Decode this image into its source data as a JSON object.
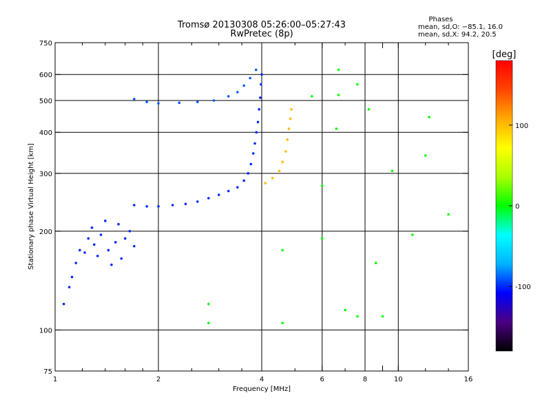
{
  "chart_data": {
    "type": "scatter",
    "title": "Tromsø 20130308 05:26:00–05:27:43",
    "subtitle": "RwPretec (8p)",
    "xlabel": "Frequency [MHz]",
    "ylabel": "Stationary phase Virtual Height [km]",
    "x_scale": "log",
    "y_scale": "log",
    "xlim": [
      1,
      16
    ],
    "ylim": [
      75,
      750
    ],
    "x_ticks": [
      1,
      2,
      4,
      6,
      8,
      9,
      10,
      16
    ],
    "x_tick_labels": [
      "1",
      "2",
      "4",
      "6",
      "8",
      "",
      "10",
      "16"
    ],
    "x_grid_lines": [
      2,
      4,
      6,
      8,
      10
    ],
    "x_minor_ticks": [
      1.2,
      1.4,
      1.6,
      1.8,
      2.5,
      3,
      3.5,
      5,
      7,
      9,
      12,
      14
    ],
    "y_ticks": [
      75,
      100,
      200,
      300,
      400,
      500,
      600,
      750
    ],
    "y_tick_labels": [
      "75",
      "100",
      "200",
      "300",
      "400",
      "500",
      "600",
      "750"
    ],
    "y_grid_lines": [
      100,
      200,
      300,
      400,
      500,
      600
    ],
    "grid": true,
    "phase_box": {
      "title": "Phases",
      "line1": "mean, sd,O: −85.1, 16.0",
      "line2": "mean, sd,X:  94.2, 20.5"
    },
    "colorbar": {
      "label": "[deg]",
      "range": [
        -180,
        180
      ],
      "ticks": [
        100,
        0,
        -100
      ],
      "tick_labels": [
        "100",
        "0",
        "-100"
      ],
      "colors": [
        "#000000",
        "#4b0082",
        "#0000ff",
        "#00b4ff",
        "#00ffff",
        "#00ff00",
        "#aaff00",
        "#ffff00",
        "#ffaa00",
        "#ff4400",
        "#ff0000"
      ]
    },
    "series": [
      {
        "trace": "O-mode low layer",
        "phase": -100,
        "points": [
          [
            1.22,
            172
          ],
          [
            1.25,
            190
          ],
          [
            1.28,
            205
          ],
          [
            1.3,
            182
          ],
          [
            1.33,
            168
          ],
          [
            1.36,
            195
          ],
          [
            1.4,
            215
          ],
          [
            1.43,
            175
          ],
          [
            1.46,
            158
          ],
          [
            1.5,
            185
          ],
          [
            1.53,
            210
          ],
          [
            1.56,
            165
          ],
          [
            1.6,
            190
          ],
          [
            1.65,
            200
          ],
          [
            1.7,
            180
          ],
          [
            1.12,
            145
          ],
          [
            1.15,
            160
          ],
          [
            1.18,
            175
          ],
          [
            1.06,
            120
          ],
          [
            1.1,
            135
          ]
        ]
      },
      {
        "trace": "O-mode F trace",
        "phase": -100,
        "points": [
          [
            1.7,
            240
          ],
          [
            1.85,
            238
          ],
          [
            2.0,
            238
          ],
          [
            2.2,
            240
          ],
          [
            2.4,
            242
          ],
          [
            2.6,
            246
          ],
          [
            2.8,
            252
          ],
          [
            3.0,
            258
          ],
          [
            3.2,
            265
          ],
          [
            3.4,
            272
          ],
          [
            3.55,
            285
          ],
          [
            3.65,
            300
          ],
          [
            3.72,
            320
          ],
          [
            3.78,
            345
          ],
          [
            3.82,
            370
          ],
          [
            3.86,
            400
          ],
          [
            3.9,
            430
          ],
          [
            3.93,
            470
          ],
          [
            3.96,
            510
          ],
          [
            3.98,
            560
          ],
          [
            4.0,
            600
          ]
        ]
      },
      {
        "trace": "O-mode multiple echo",
        "phase": -90,
        "points": [
          [
            1.7,
            505
          ],
          [
            1.85,
            495
          ],
          [
            2.0,
            490
          ],
          [
            2.3,
            492
          ],
          [
            2.6,
            495
          ],
          [
            2.9,
            500
          ],
          [
            3.2,
            515
          ],
          [
            3.4,
            530
          ],
          [
            3.55,
            555
          ],
          [
            3.7,
            585
          ],
          [
            3.85,
            620
          ]
        ]
      },
      {
        "trace": "X-mode trace",
        "phase": 100,
        "points": [
          [
            4.1,
            280
          ],
          [
            4.3,
            290
          ],
          [
            4.5,
            305
          ],
          [
            4.6,
            325
          ],
          [
            4.7,
            350
          ],
          [
            4.75,
            380
          ],
          [
            4.8,
            410
          ],
          [
            4.85,
            440
          ],
          [
            4.88,
            470
          ]
        ]
      },
      {
        "trace": "scattered echoes",
        "phase": 0,
        "points": [
          [
            6.7,
            620
          ],
          [
            6.7,
            520
          ],
          [
            7.6,
            560
          ],
          [
            6.6,
            410
          ],
          [
            8.2,
            470
          ],
          [
            6.0,
            190
          ],
          [
            6.0,
            275
          ],
          [
            12.3,
            445
          ],
          [
            12.0,
            340
          ],
          [
            11.0,
            195
          ],
          [
            14.0,
            225
          ],
          [
            5.6,
            515
          ],
          [
            9.6,
            305
          ],
          [
            2.8,
            105
          ],
          [
            2.8,
            120
          ],
          [
            4.6,
            105
          ],
          [
            4.6,
            175
          ],
          [
            7.0,
            115
          ],
          [
            7.6,
            110
          ],
          [
            8.6,
            160
          ],
          [
            9.0,
            110
          ]
        ]
      }
    ]
  }
}
